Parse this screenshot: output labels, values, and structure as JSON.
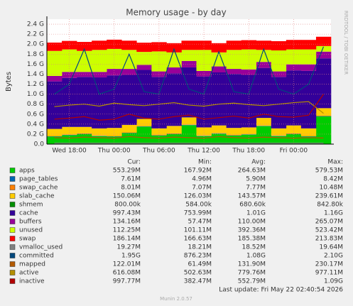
{
  "chart_data": {
    "type": "munin",
    "title": "Memory usage - by day",
    "y_label": "Bytes",
    "side_text": "RRDTOOL / TOBI OETIKER",
    "footer": "Last update: Fri May 22 02:40:54 2026",
    "version": "Munin 2.0.57",
    "legend_headers": [
      "Cur:",
      "Min:",
      "Avg:",
      "Max:"
    ],
    "categories": [
      null,
      "Wed 18:00",
      null,
      null,
      "Thu 00:00",
      null,
      null,
      "Thu 06:00",
      null,
      null,
      "Thu 12:00",
      null,
      null,
      "Thu 18:00",
      null,
      null,
      "Fri 00:00",
      null,
      null
    ],
    "ylim": [
      0,
      2.5
    ],
    "yticks": [
      {
        "value": 0,
        "label": "0.0"
      },
      {
        "value": 0.2,
        "label": "0.2 G"
      },
      {
        "value": 0.4,
        "label": "0.4 G"
      },
      {
        "value": 0.6,
        "label": "0.6 G"
      },
      {
        "value": 0.8,
        "label": "0.8 G"
      },
      {
        "value": 1,
        "label": "1.0 G"
      },
      {
        "value": 1.2,
        "label": "1.2 G"
      },
      {
        "value": 1.4,
        "label": "1.4 G"
      },
      {
        "value": 1.6,
        "label": "1.6 G"
      },
      {
        "value": 1.8,
        "label": "1.8 G"
      },
      {
        "value": 2,
        "label": "2.0 G"
      },
      {
        "value": 2.2,
        "label": "2.2 G"
      },
      {
        "value": 2.4,
        "label": "2.4 G"
      }
    ],
    "grid": true,
    "series": [
      {
        "name": "apps",
        "color": "#00cc00",
        "draw": "stack",
        "values": [
          0.15,
          0.18,
          0.2,
          0.16,
          0.15,
          0.22,
          0.35,
          0.17,
          0.2,
          0.38,
          0.16,
          0.21,
          0.17,
          0.19,
          0.36,
          0.16,
          0.2,
          0.15,
          0.553
        ],
        "stats": [
          "553.29M",
          "167.92M",
          "264.63M",
          "579.53M"
        ]
      },
      {
        "name": "page_tables",
        "color": "#0066b3",
        "draw": "stack",
        "values": [
          0.006,
          0.006,
          0.006,
          0.006,
          0.006,
          0.006,
          0.006,
          0.006,
          0.006,
          0.006,
          0.006,
          0.006,
          0.006,
          0.006,
          0.006,
          0.006,
          0.006,
          0.006,
          0.0076
        ],
        "stats": [
          "7.61M",
          "4.96M",
          "5.90M",
          "8.42M"
        ]
      },
      {
        "name": "swap_cache",
        "color": "#ff8000",
        "draw": "stack",
        "values": [
          0.008,
          0.008,
          0.008,
          0.008,
          0.008,
          0.008,
          0.008,
          0.008,
          0.008,
          0.008,
          0.008,
          0.008,
          0.008,
          0.008,
          0.008,
          0.008,
          0.008,
          0.008,
          0.008
        ],
        "stats": [
          "8.01M",
          "7.07M",
          "7.77M",
          "10.48M"
        ]
      },
      {
        "name": "slab_cache",
        "color": "#ffcc00",
        "draw": "stack",
        "values": [
          0.14,
          0.15,
          0.13,
          0.14,
          0.16,
          0.15,
          0.14,
          0.13,
          0.15,
          0.14,
          0.16,
          0.15,
          0.14,
          0.13,
          0.15,
          0.14,
          0.16,
          0.15,
          0.15
        ],
        "stats": [
          "150.06M",
          "126.03M",
          "143.57M",
          "239.61M"
        ]
      },
      {
        "name": "shmem",
        "color": "#008f00",
        "draw": "stack",
        "values": [
          0.0007,
          0.0007,
          0.0007,
          0.0007,
          0.0007,
          0.0007,
          0.0007,
          0.0007,
          0.0007,
          0.0007,
          0.0007,
          0.0007,
          0.0007,
          0.0007,
          0.0007,
          0.0007,
          0.0007,
          0.0007,
          0.0008
        ],
        "stats": [
          "800.00k",
          "584.00k",
          "680.60k",
          "842.80k"
        ]
      },
      {
        "name": "cache",
        "color": "#330099",
        "draw": "stack",
        "values": [
          0.95,
          0.98,
          1.0,
          1.02,
          1.05,
          1.0,
          0.98,
          1.03,
          1.05,
          1.0,
          1.02,
          1.06,
          1.08,
          1.05,
          1.0,
          1.03,
          1.1,
          1.15,
          0.997
        ],
        "stats": [
          "997.43M",
          "753.99M",
          "1.01G",
          "1.16G"
        ]
      },
      {
        "name": "buffers",
        "color": "#990099",
        "draw": "stack",
        "values": [
          0.11,
          0.12,
          0.1,
          0.11,
          0.13,
          0.12,
          0.1,
          0.11,
          0.12,
          0.13,
          0.11,
          0.12,
          0.1,
          0.11,
          0.12,
          0.11,
          0.12,
          0.13,
          0.134
        ],
        "stats": [
          "134.16M",
          "57.47M",
          "110.00M",
          "265.07M"
        ]
      },
      {
        "name": "unused",
        "color": "#ccff00",
        "draw": "stack",
        "values": [
          0.5,
          0.45,
          0.42,
          0.44,
          0.4,
          0.38,
          0.26,
          0.4,
          0.3,
          0.22,
          0.42,
          0.28,
          0.38,
          0.4,
          0.24,
          0.42,
          0.3,
          0.3,
          0.112
        ],
        "stats": [
          "112.25M",
          "101.11M",
          "392.36M",
          "523.42M"
        ]
      },
      {
        "name": "swap",
        "color": "#ff0000",
        "draw": "stack",
        "values": [
          0.167,
          0.17,
          0.18,
          0.185,
          0.185,
          0.185,
          0.185,
          0.185,
          0.185,
          0.185,
          0.185,
          0.185,
          0.185,
          0.185,
          0.185,
          0.185,
          0.19,
          0.19,
          0.186
        ],
        "stats": [
          "186.14M",
          "166.63M",
          "185.38M",
          "213.83M"
        ]
      },
      {
        "name": "vmalloc_used",
        "color": "#808080",
        "draw": "line",
        "values": [
          0.019,
          0.019,
          0.019,
          0.019,
          0.019,
          0.019,
          0.019,
          0.019,
          0.019,
          0.019,
          0.019,
          0.019,
          0.019,
          0.019,
          0.019,
          0.019,
          0.019,
          0.019,
          0.019
        ],
        "stats": [
          "19.27M",
          "18.21M",
          "18.52M",
          "19.64M"
        ]
      },
      {
        "name": "committed",
        "color": "#00487d",
        "draw": "line",
        "values": [
          1.0,
          1.2,
          1.9,
          1.0,
          1.1,
          1.8,
          1.05,
          1.0,
          1.9,
          1.1,
          1.0,
          1.85,
          1.05,
          1.0,
          1.9,
          1.1,
          1.0,
          1.2,
          1.95
        ],
        "stats": [
          "1.95G",
          "876.23M",
          "1.08G",
          "2.10G"
        ]
      },
      {
        "name": "mapped",
        "color": "#b35a00",
        "draw": "line",
        "values": [
          0.13,
          0.12,
          0.14,
          0.13,
          0.12,
          0.15,
          0.13,
          0.12,
          0.14,
          0.13,
          0.12,
          0.15,
          0.13,
          0.12,
          0.14,
          0.13,
          0.12,
          0.13,
          0.122
        ],
        "stats": [
          "122.01M",
          "61.49M",
          "131.90M",
          "230.17M"
        ]
      },
      {
        "name": "active",
        "color": "#b38f00",
        "draw": "line",
        "values": [
          0.75,
          0.78,
          0.8,
          0.76,
          0.82,
          0.79,
          0.77,
          0.8,
          0.83,
          0.78,
          0.76,
          0.8,
          0.82,
          0.79,
          0.77,
          0.8,
          0.83,
          0.85,
          0.616
        ],
        "stats": [
          "616.08M",
          "502.63M",
          "779.76M",
          "977.11M"
        ]
      },
      {
        "name": "inactive",
        "color": "#b30000",
        "draw": "line",
        "values": [
          0.5,
          0.52,
          0.55,
          0.48,
          0.5,
          0.6,
          0.52,
          0.5,
          0.55,
          0.58,
          0.5,
          0.53,
          0.56,
          0.52,
          0.6,
          0.55,
          0.54,
          0.58,
          0.998
        ],
        "stats": [
          "997.77M",
          "382.47M",
          "552.79M",
          "1.09G"
        ]
      }
    ]
  }
}
